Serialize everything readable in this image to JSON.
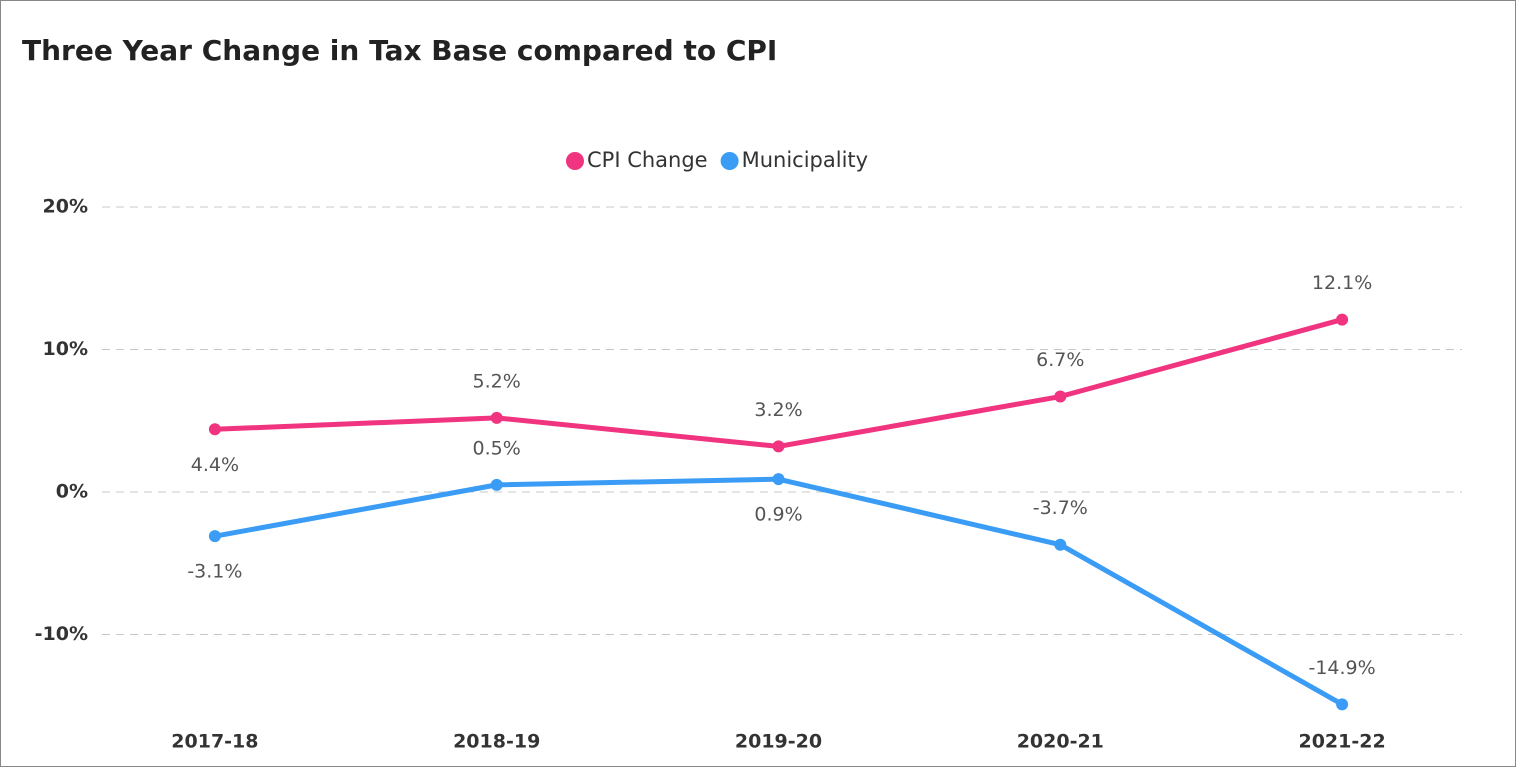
{
  "chart_data": {
    "type": "line",
    "title": "Three Year Change in Tax Base compared to CPI",
    "categories": [
      "2017-18",
      "2018-19",
      "2019-20",
      "2020-21",
      "2021-22"
    ],
    "series": [
      {
        "name": "CPI Change",
        "color": "#f0347f",
        "values": [
          4.4,
          5.2,
          3.2,
          6.7,
          12.1
        ],
        "value_labels": [
          "4.4%",
          "5.2%",
          "3.2%",
          "6.7%",
          "12.1%"
        ]
      },
      {
        "name": "Municipality",
        "color": "#3a9cf4",
        "values": [
          -3.1,
          0.5,
          0.9,
          -3.7,
          -14.9
        ],
        "value_labels": [
          "-3.1%",
          "0.5%",
          "0.9%",
          "-3.7%",
          "-14.9%"
        ]
      }
    ],
    "ylim": [
      -16,
      22
    ],
    "yticks": [
      {
        "value": -10,
        "label": "-10%"
      },
      {
        "value": 0,
        "label": "0%"
      },
      {
        "value": 10,
        "label": "10%"
      },
      {
        "value": 20,
        "label": "20%"
      }
    ],
    "grid": true,
    "legend": "top"
  }
}
